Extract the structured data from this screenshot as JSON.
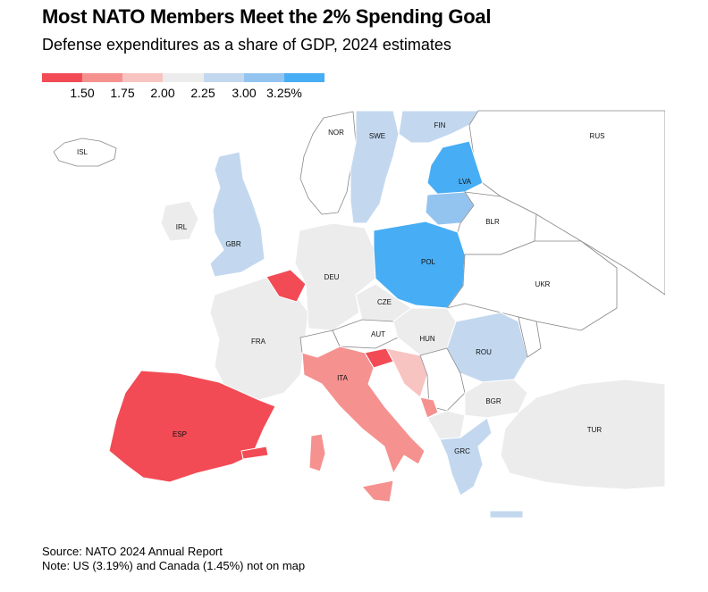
{
  "title": "Most NATO Members Meet the 2% Spending Goal",
  "subtitle": "Defense expenditures as a share of GDP, 2024 estimates",
  "legend": {
    "colors": [
      "#f24b55",
      "#f5918f",
      "#f8c4c2",
      "#ececec",
      "#c3d8ef",
      "#93c4f0",
      "#47adf4"
    ],
    "labels": [
      "1.50",
      "1.75",
      "2.00",
      "2.25",
      "3.00",
      "3.25%"
    ]
  },
  "countries": {
    "ISL": "ISL",
    "NOR": "NOR",
    "SWE": "SWE",
    "FIN": "FIN",
    "RUS": "RUS",
    "LVA": "LVA",
    "BLR": "BLR",
    "IRL": "IRL",
    "GBR": "GBR",
    "DEU": "DEU",
    "POL": "POL",
    "UKR": "UKR",
    "CZE": "CZE",
    "FRA": "FRA",
    "AUT": "AUT",
    "HUN": "HUN",
    "ROU": "ROU",
    "ITA": "ITA",
    "BGR": "BGR",
    "ESP": "ESP",
    "TUR": "TUR",
    "GRC": "GRC"
  },
  "footer": {
    "source": "Source: NATO 2024 Annual Report",
    "note": "Note: US (3.19%) and Canada (1.45%) not on map"
  }
}
